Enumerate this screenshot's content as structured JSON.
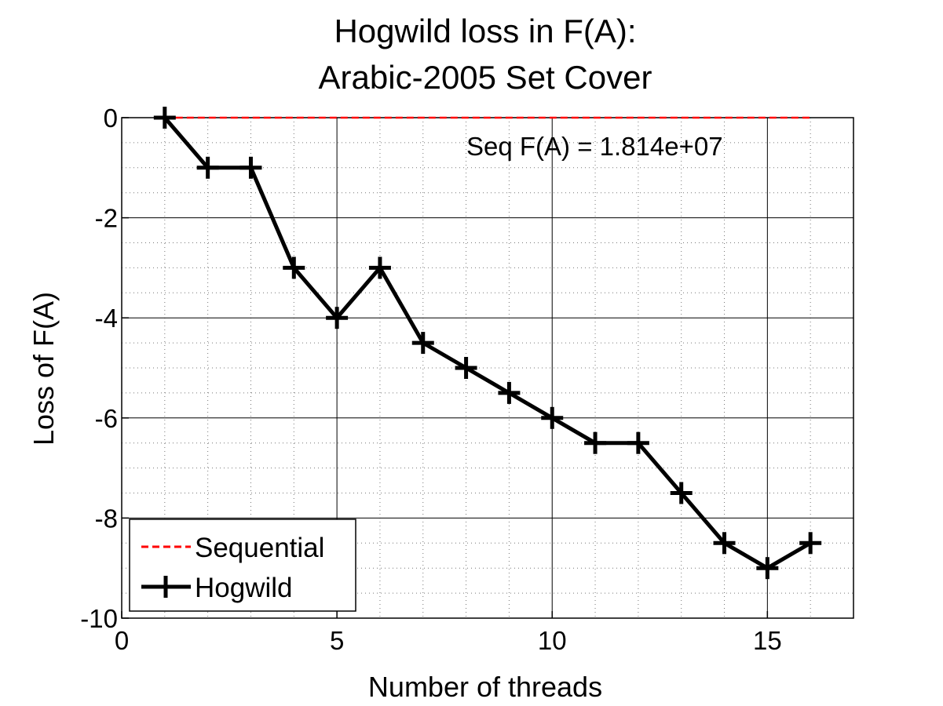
{
  "chart_data": {
    "type": "line",
    "title": [
      "Hogwild loss in F(A):",
      "Arabic-2005 Set Cover"
    ],
    "xlabel": "Number of threads",
    "ylabel": "Loss of F(A)",
    "xlim": [
      0,
      17
    ],
    "ylim": [
      -10,
      0
    ],
    "xticks": [
      0,
      5,
      10,
      15
    ],
    "yticks": [
      0,
      -2,
      -4,
      -6,
      -8,
      -10
    ],
    "xtick_labels": [
      "0",
      "5",
      "10",
      "15"
    ],
    "ytick_labels": [
      "0",
      "-2",
      "-4",
      "-6",
      "-8",
      "-10"
    ],
    "grid": true,
    "minor_grid": true,
    "legend_location": "bottom-left",
    "annotation": "Seq F(A) = 1.814e+07",
    "series": [
      {
        "name": "Sequential",
        "color": "#ff0000",
        "style": "dashed",
        "x": [
          1,
          16
        ],
        "y": [
          0,
          0
        ]
      },
      {
        "name": "Hogwild",
        "color": "#000000",
        "style": "solid",
        "marker": "plus",
        "x": [
          1,
          2,
          3,
          4,
          5,
          6,
          7,
          8,
          9,
          10,
          11,
          12,
          13,
          14,
          15,
          16
        ],
        "y": [
          0,
          -1,
          -1,
          -3,
          -4,
          -3,
          -4.5,
          -5,
          -5.5,
          -6,
          -6.5,
          -6.5,
          -7.5,
          -8.5,
          -9,
          -8.5
        ]
      }
    ]
  }
}
